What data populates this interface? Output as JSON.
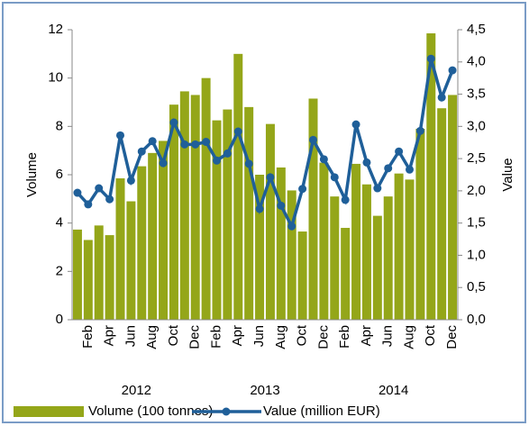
{
  "chart_data": {
    "type": "bar-line",
    "categories": [
      null,
      "Feb",
      null,
      "Apr",
      null,
      "Jun",
      null,
      "Aug",
      null,
      "Oct",
      null,
      "Dec",
      null,
      "Feb",
      null,
      "Apr",
      null,
      "Jun",
      null,
      "Aug",
      null,
      "Oct",
      null,
      "Dec",
      null,
      "Feb",
      null,
      "Apr",
      null,
      "Jun",
      null,
      "Aug",
      null,
      "Oct",
      null,
      "Dec"
    ],
    "year_labels": [
      "2012",
      "2013",
      "2014"
    ],
    "y_label": "Volume",
    "y2_label": "Value",
    "series": [
      {
        "name": "Volume (100 tonnes)",
        "type": "bar",
        "color": "#94a619",
        "values": [
          3.73,
          3.3,
          3.9,
          3.5,
          5.85,
          4.9,
          6.35,
          6.9,
          7.4,
          8.9,
          9.45,
          9.3,
          10.0,
          8.25,
          8.7,
          11.0,
          8.8,
          6.0,
          8.1,
          6.3,
          5.35,
          3.65,
          9.15,
          6.5,
          5.1,
          3.8,
          6.45,
          5.6,
          4.3,
          5.1,
          6.05,
          5.8,
          7.9,
          11.85,
          8.75,
          9.3
        ]
      },
      {
        "name": "Value (million EUR)",
        "type": "line",
        "axis": "y2",
        "color": "#1f5f99",
        "values": [
          1.97,
          1.79,
          2.04,
          1.87,
          2.86,
          2.16,
          2.61,
          2.77,
          2.43,
          3.06,
          2.72,
          2.72,
          2.76,
          2.47,
          2.58,
          2.92,
          2.42,
          1.72,
          2.21,
          1.77,
          1.45,
          2.03,
          2.79,
          2.49,
          2.21,
          1.86,
          3.03,
          2.44,
          2.04,
          2.35,
          2.61,
          2.33,
          2.93,
          4.05,
          3.45,
          3.87
        ]
      }
    ],
    "ylim": [
      0,
      12
    ],
    "yticks": [
      0,
      2,
      4,
      6,
      8,
      10,
      12
    ],
    "y2lim": [
      0,
      4.5
    ],
    "y2ticks": [
      {
        "value": 0,
        "label": "0,0"
      },
      {
        "value": 0.5,
        "label": "0,5"
      },
      {
        "value": 1,
        "label": "1,0"
      },
      {
        "value": 1.5,
        "label": "1,5"
      },
      {
        "value": 2,
        "label": "2,0"
      },
      {
        "value": 2.5,
        "label": "2,5"
      },
      {
        "value": 3,
        "label": "3,0"
      },
      {
        "value": 3.5,
        "label": "3,5"
      },
      {
        "value": 4,
        "label": "4,0"
      },
      {
        "value": 4.5,
        "label": "4,5"
      }
    ],
    "legend": "bottom"
  }
}
